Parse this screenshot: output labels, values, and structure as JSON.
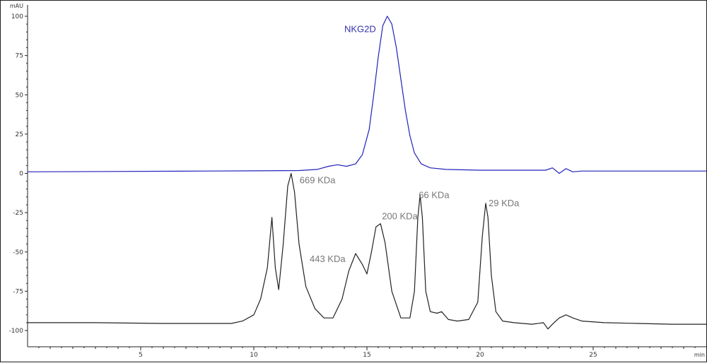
{
  "chart_data": {
    "type": "line",
    "title": "",
    "xlabel": "",
    "ylabel": "",
    "y_unit": "mAU",
    "x_unit": "min",
    "xlim": [
      0,
      30
    ],
    "ylim": [
      -110,
      100
    ],
    "x_ticks": [
      5,
      10,
      15,
      20,
      25
    ],
    "y_ticks": [
      100,
      75,
      50,
      25,
      0,
      -25,
      -50,
      -75,
      -100
    ],
    "y_tick_labels": [
      "100",
      "75",
      "50",
      "25",
      "0",
      "-25",
      "-50",
      "-75",
      "-100"
    ],
    "grid": false,
    "series": [
      {
        "name": "NKG2D",
        "color": "#2222bb",
        "x": [
          0,
          8,
          10,
          12,
          12.8,
          13.3,
          13.7,
          14.1,
          14.5,
          14.8,
          15.1,
          15.3,
          15.5,
          15.7,
          15.9,
          16.1,
          16.3,
          16.5,
          16.7,
          16.9,
          17.1,
          17.4,
          17.8,
          18.5,
          20,
          22,
          22.9,
          23.2,
          23.5,
          23.8,
          24.1,
          24.5,
          26,
          28,
          30
        ],
        "y": [
          1,
          1.5,
          1.6,
          1.8,
          2.5,
          4.5,
          5.5,
          4.5,
          6,
          12,
          28,
          50,
          74,
          94,
          100,
          95,
          80,
          60,
          40,
          24,
          13,
          6,
          3.5,
          2.5,
          2,
          2,
          2,
          3.5,
          0,
          3,
          1,
          1.5,
          1.5,
          1.5,
          1.5
        ]
      },
      {
        "name": "",
        "color": "#222222",
        "x": [
          0,
          3,
          6,
          9,
          9.5,
          10,
          10.3,
          10.6,
          10.8,
          10.95,
          11.1,
          11.3,
          11.5,
          11.65,
          11.8,
          12,
          12.3,
          12.7,
          13.1,
          13.5,
          13.9,
          14.2,
          14.5,
          14.8,
          15,
          15.2,
          15.4,
          15.6,
          15.8,
          16.1,
          16.5,
          16.9,
          17.1,
          17.25,
          17.35,
          17.45,
          17.6,
          17.8,
          18.1,
          18.3,
          18.6,
          19,
          19.5,
          19.9,
          20.1,
          20.25,
          20.35,
          20.5,
          20.7,
          21,
          21.5,
          22.3,
          22.8,
          23,
          23.2,
          23.5,
          23.8,
          24.1,
          24.5,
          25.5,
          27,
          28.5,
          30
        ],
        "y": [
          -95,
          -95,
          -95.5,
          -95.5,
          -94,
          -90,
          -80,
          -60,
          -28,
          -60,
          -74,
          -45,
          -8,
          0,
          -12,
          -45,
          -72,
          -86,
          -92,
          -92,
          -80,
          -62,
          -51,
          -58,
          -64,
          -50,
          -34,
          -32,
          -44,
          -75,
          -92,
          -92,
          -75,
          -28,
          -14,
          -28,
          -75,
          -88,
          -89,
          -88,
          -93,
          -94,
          -93,
          -82,
          -40,
          -19,
          -28,
          -65,
          -88,
          -94,
          -95,
          -96,
          -95,
          -99,
          -96,
          -92,
          -90,
          -92,
          -94,
          -95,
          -95.5,
          -96,
          -96
        ]
      }
    ],
    "annotations": [
      {
        "text": "NKG2D",
        "x": 14.0,
        "y": 90,
        "series": 0
      },
      {
        "text": "669 KDa",
        "x": 11.65,
        "y": 0
      },
      {
        "text": "443 KDa",
        "x": 14.3,
        "y": -51
      },
      {
        "text": "200 KDa",
        "x": 15.6,
        "y": -32
      },
      {
        "text": "66 KDa",
        "x": 17.35,
        "y": -14
      },
      {
        "text": "29 KDa",
        "x": 20.25,
        "y": -19
      }
    ]
  }
}
